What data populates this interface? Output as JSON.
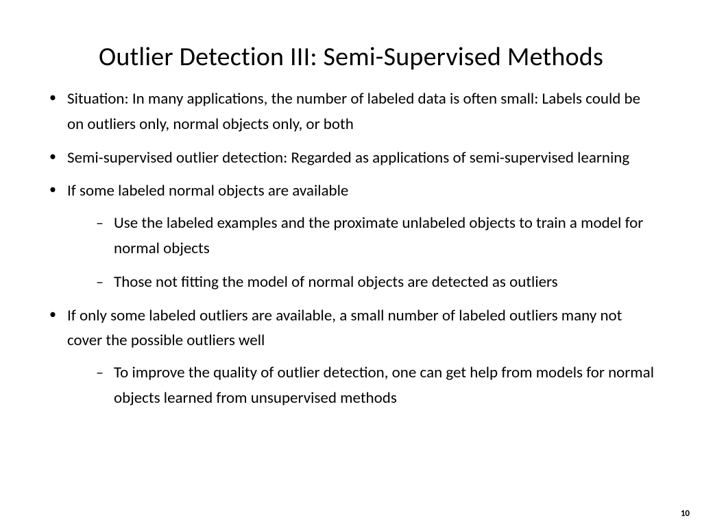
{
  "slide": {
    "title": "Outlier Detection III: Semi-Supervised Methods",
    "bullets": [
      {
        "text": "Situation: In many applications, the number of labeled data is often small: Labels could be on outliers only, normal objects only, or both"
      },
      {
        "text": "Semi-supervised outlier detection: Regarded as applications of semi-supervised learning"
      },
      {
        "text": "If some labeled normal objects are available",
        "sub": [
          "Use the labeled examples and the proximate unlabeled objects to train a model for normal objects",
          "Those not fitting the model of normal objects are detected as outliers"
        ]
      },
      {
        "text": "If only some labeled outliers are available, a small number of labeled outliers many not cover the possible outliers well",
        "sub": [
          "To improve the quality of outlier detection, one can get help from models for normal objects learned from unsupervised methods"
        ]
      }
    ],
    "page_number": "10",
    "colors": {
      "background": "#ffffff",
      "text": "#000000"
    },
    "typography": {
      "title_fontsize": 38,
      "body_fontsize": 23,
      "font_family": "Calibri"
    }
  }
}
